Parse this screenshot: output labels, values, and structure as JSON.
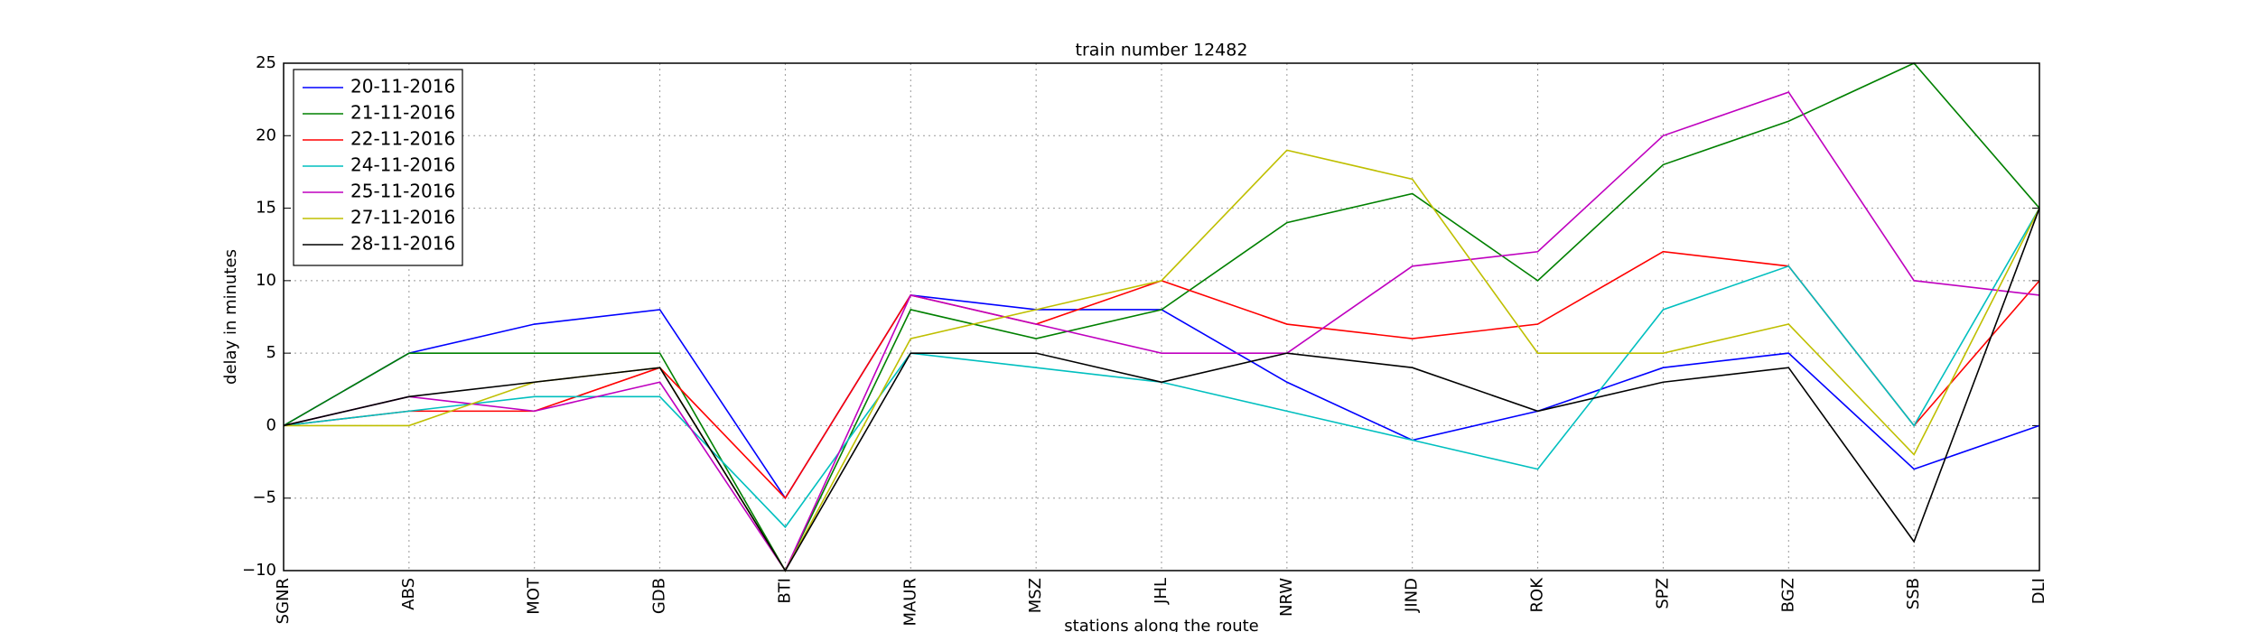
{
  "chart_data": {
    "type": "line",
    "title": "train number 12482",
    "x_label": "stations along the route",
    "y_label": "delay in minutes",
    "categories": [
      "SGNR",
      "ABS",
      "MOT",
      "GDB",
      "BTI",
      "MAUR",
      "MSZ",
      "JHL",
      "NRW",
      "JIND",
      "ROK",
      "SPZ",
      "BGZ",
      "SSB",
      "DLI"
    ],
    "series": [
      {
        "name": "20-11-2016",
        "color": "#0000ff",
        "values": [
          0,
          5,
          7,
          8,
          -5,
          9,
          8,
          8,
          3,
          -1,
          1,
          4,
          5,
          -3,
          0
        ]
      },
      {
        "name": "21-11-2016",
        "color": "#008000",
        "values": [
          0,
          5,
          5,
          5,
          -10,
          8,
          6,
          8,
          14,
          16,
          10,
          18,
          21,
          25,
          15
        ]
      },
      {
        "name": "22-11-2016",
        "color": "#ff0000",
        "values": [
          0,
          1,
          1,
          4,
          -5,
          9,
          7,
          10,
          7,
          6,
          7,
          12,
          11,
          0,
          10
        ]
      },
      {
        "name": "24-11-2016",
        "color": "#00bfbf",
        "values": [
          0,
          1,
          2,
          2,
          -7,
          5,
          4,
          3,
          1,
          -1,
          -3,
          8,
          11,
          0,
          15
        ]
      },
      {
        "name": "25-11-2016",
        "color": "#bf00bf",
        "values": [
          0,
          2,
          1,
          3,
          -10,
          9,
          7,
          5,
          5,
          11,
          12,
          20,
          23,
          10,
          9
        ]
      },
      {
        "name": "27-11-2016",
        "color": "#bfbf00",
        "values": [
          0,
          0,
          3,
          4,
          -10,
          6,
          8,
          10,
          19,
          17,
          5,
          5,
          7,
          -2,
          15
        ]
      },
      {
        "name": "28-11-2016",
        "color": "#000000",
        "values": [
          0,
          2,
          3,
          4,
          -10,
          5,
          5,
          3,
          5,
          4,
          1,
          3,
          4,
          -8,
          15
        ]
      }
    ],
    "ylim": [
      -10,
      25
    ],
    "yticks": [
      {
        "value": -10,
        "label": "−10"
      },
      {
        "value": -5,
        "label": "−5"
      },
      0,
      5,
      10,
      15,
      20,
      25
    ],
    "grid": true,
    "legend": "upper-left"
  }
}
